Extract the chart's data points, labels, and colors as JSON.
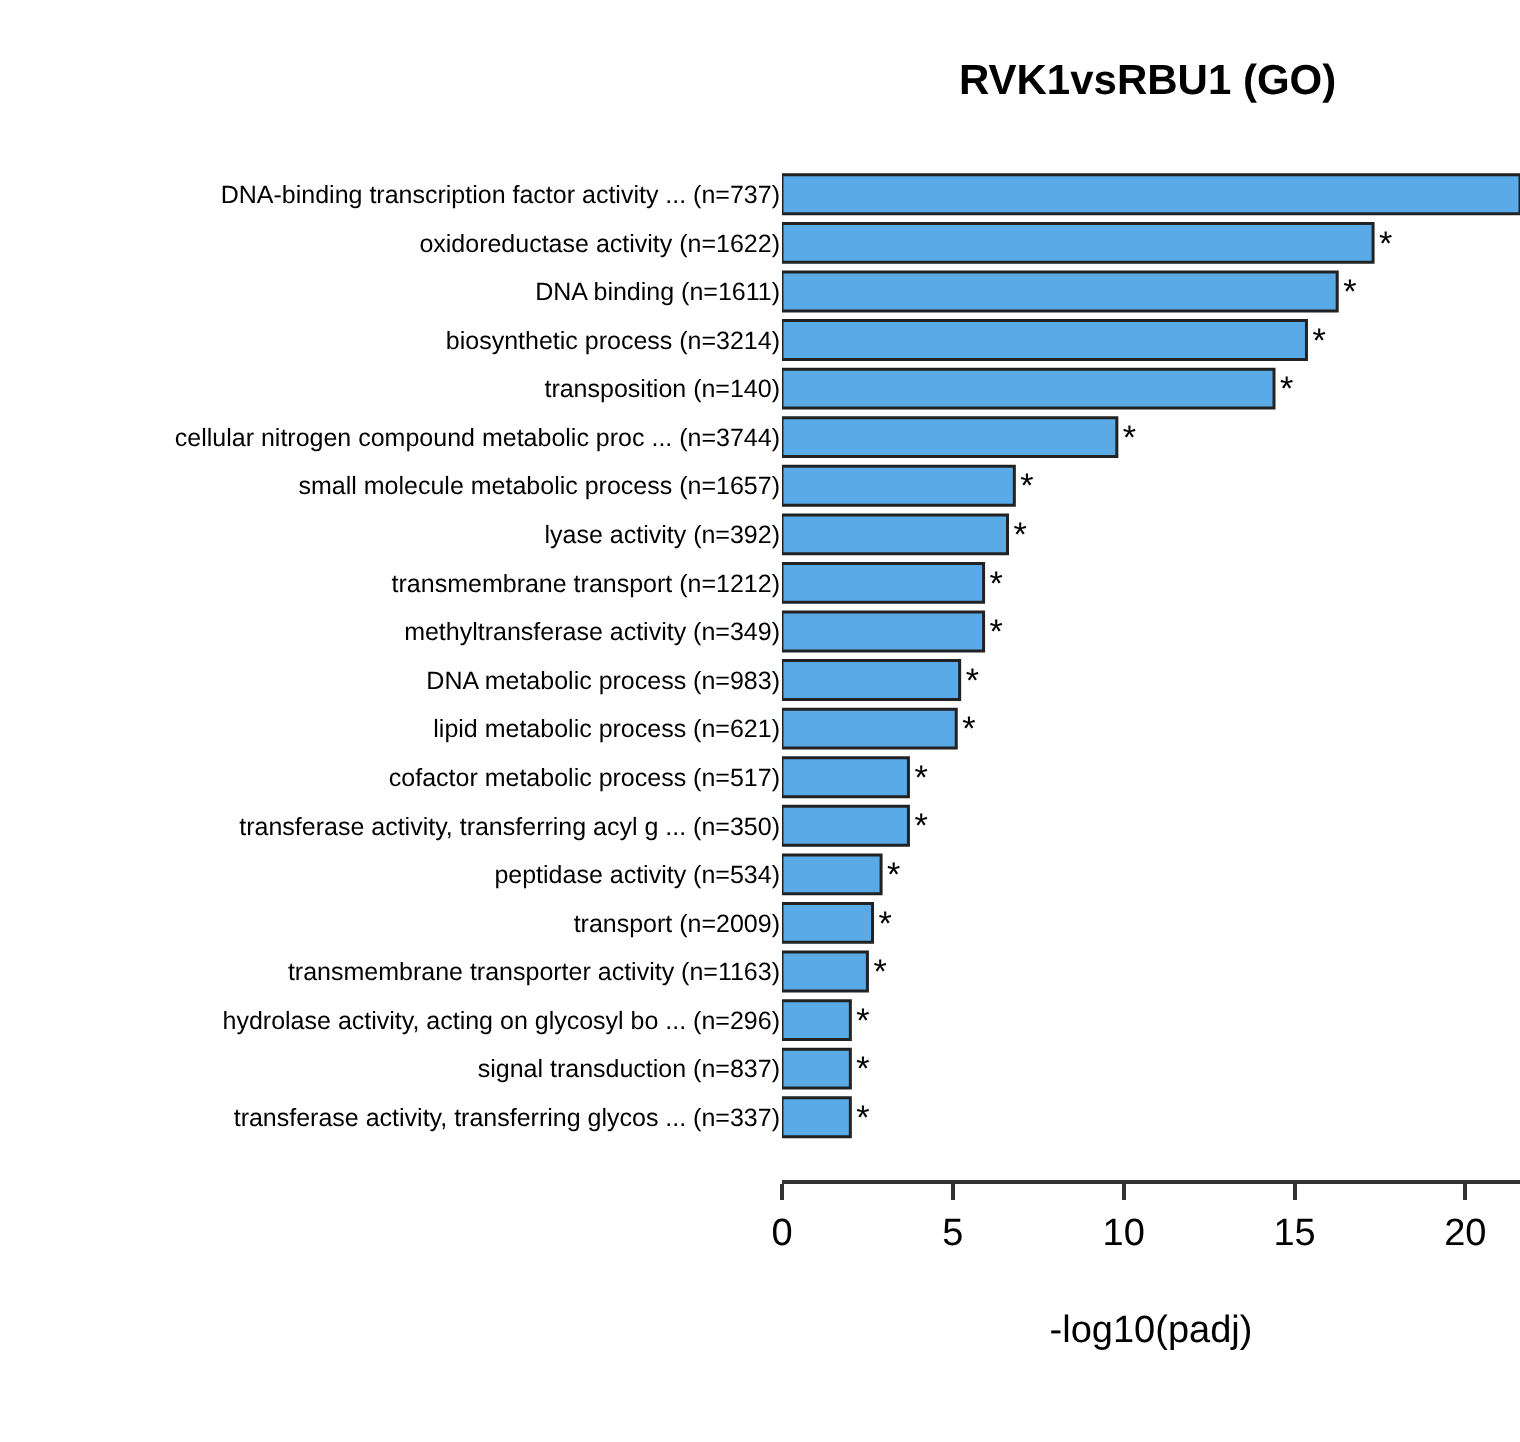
{
  "chart_data": {
    "type": "bar",
    "orientation": "horizontal",
    "title": "RVK1vsRBU1 (GO)",
    "xlabel": "-log10(padj)",
    "categories": [
      "DNA-binding transcription factor activity ... (n=737)",
      "oxidoreductase activity (n=1622)",
      "DNA binding (n=1611)",
      "biosynthetic process (n=3214)",
      "transposition (n=140)",
      "cellular nitrogen compound metabolic proc ... (n=3744)",
      "small molecule metabolic process (n=1657)",
      "lyase activity (n=392)",
      "transmembrane transport (n=1212)",
      "methyltransferase activity (n=349)",
      "DNA metabolic process (n=983)",
      "lipid metabolic process (n=621)",
      "cofactor metabolic process (n=517)",
      "transferase activity, transferring acyl g ... (n=350)",
      "peptidase activity (n=534)",
      "transport (n=2009)",
      "transmembrane transporter activity (n=1163)",
      "hydrolase activity, acting on glycosyl bo ... (n=296)",
      "signal transduction (n=837)",
      "transferase activity, transferring glycos ... (n=337)"
    ],
    "values": [
      21.6,
      17.3,
      16.25,
      15.35,
      14.4,
      9.8,
      6.8,
      6.6,
      5.9,
      5.9,
      5.2,
      5.1,
      3.7,
      3.7,
      2.9,
      2.65,
      2.5,
      2.0,
      2.0,
      2.0
    ],
    "value_labels": [
      null,
      "*",
      "*",
      "*",
      "*",
      "*",
      "*",
      "*",
      "*",
      "*",
      "*",
      "*",
      "*",
      "*",
      "*",
      "*",
      "*",
      "*",
      "*",
      "*"
    ],
    "color": "#5aaae8",
    "xlim": [
      0,
      21.6
    ],
    "xticks": [
      0,
      5,
      10,
      15,
      20
    ]
  }
}
